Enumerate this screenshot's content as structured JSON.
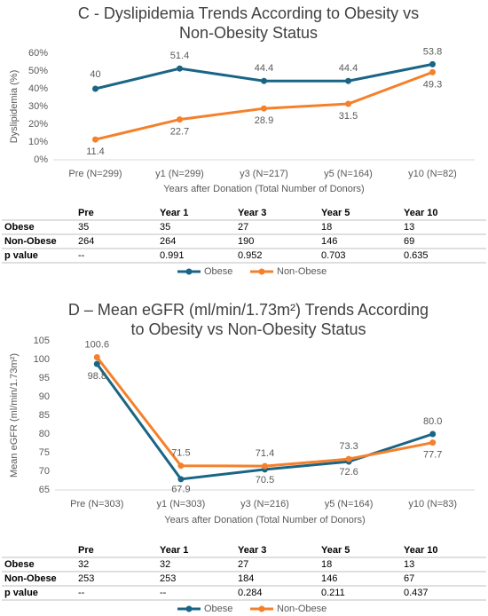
{
  "chart_data": [
    {
      "type": "line",
      "title": "C - Dyslipidemia Trends According to Obesity vs Non-Obesity Status",
      "y_label": "Dyslipidemia (%)",
      "x_label": "Years after Donation (Total Number of Donors)",
      "categories": [
        "Pre (N=299)",
        "y1 (N=299)",
        "y3 (N=217)",
        "y5 (N=164)",
        "y10 (N=82)"
      ],
      "series": [
        {
          "name": "Obese",
          "color": "#1a6585",
          "values": [
            40,
            51.4,
            44.4,
            44.4,
            53.8
          ]
        },
        {
          "name": "Non-Obese",
          "color": "#f5802b",
          "values": [
            11.4,
            22.7,
            28.9,
            31.5,
            49.3
          ]
        }
      ],
      "ylim": [
        0,
        60
      ],
      "yticks": [
        {
          "value": 0,
          "label": "0%"
        },
        {
          "value": 10,
          "label": "10%"
        },
        {
          "value": 20,
          "label": "20%"
        },
        {
          "value": 30,
          "label": "30%"
        },
        {
          "value": 40,
          "label": "40%"
        },
        {
          "value": 50,
          "label": "50%"
        },
        {
          "value": 60,
          "label": "60%"
        }
      ],
      "grid": false,
      "legend": "bottom",
      "table": {
        "header": [
          "Pre",
          "Year 1",
          "Year 3",
          "Year 5",
          "Year 10"
        ],
        "rows": [
          {
            "label": "Obese",
            "cells": [
              35,
              35,
              27,
              18,
              13
            ]
          },
          {
            "label": "Non-Obese",
            "cells": [
              264,
              264,
              190,
              146,
              69
            ]
          },
          {
            "label": "p value",
            "cells": [
              "--",
              0.991,
              0.952,
              0.703,
              0.635
            ]
          }
        ]
      }
    },
    {
      "type": "line",
      "title": "D – Mean eGFR (ml/min/1.73m²)  Trends According to Obesity vs Non-Obesity Status",
      "y_label": "Mean eGFR (ml/min/1.73m²)",
      "x_label": "Years after Donation (Total Number of Donors)",
      "categories": [
        "Pre (N=303)",
        "y1 (N=303)",
        "y3 (N=216)",
        "y5 (N=164)",
        "y10 (N=83)"
      ],
      "series": [
        {
          "name": "Obese",
          "color": "#1a6585",
          "values": [
            98.8,
            67.9,
            70.5,
            72.6,
            80.0
          ],
          "value_labels": [
            "98.8",
            "67.9",
            "70.5",
            "72.6",
            "80.0"
          ]
        },
        {
          "name": "Non-Obese",
          "color": "#f5802b",
          "values": [
            100.6,
            71.5,
            71.4,
            73.3,
            77.7
          ],
          "value_labels": [
            "100.6",
            "71.5",
            "71.4",
            "73.3",
            "77.7"
          ]
        }
      ],
      "ylim": [
        65,
        105
      ],
      "yticks": [
        65,
        70,
        75,
        80,
        85,
        90,
        95,
        100,
        105
      ],
      "grid": false,
      "legend": "bottom",
      "table": {
        "header": [
          "Pre",
          "Year 1",
          "Year 3",
          "Year 5",
          "Year 10"
        ],
        "rows": [
          {
            "label": "Obese",
            "cells": [
              32,
              32,
              27,
              18,
              13
            ]
          },
          {
            "label": "Non-Obese",
            "cells": [
              253,
              253,
              184,
              146,
              67
            ]
          },
          {
            "label": "p value",
            "cells": [
              "--",
              "--",
              0.284,
              0.211,
              0.437
            ]
          }
        ]
      }
    }
  ]
}
